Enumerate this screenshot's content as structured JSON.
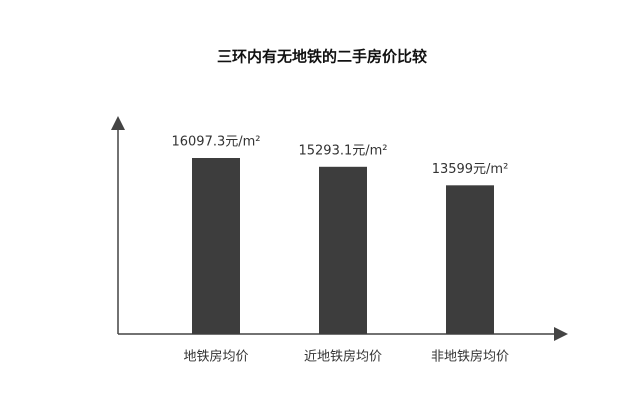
{
  "chart_data": {
    "type": "bar",
    "title": "三环内有无地铁的二手房价比较",
    "categories": [
      "地铁房均价",
      "近地铁房均价",
      "非地铁房均价"
    ],
    "values": [
      16097.3,
      15293.1,
      13599
    ],
    "value_labels": [
      "16097.3元/m²",
      "15293.1元/m²",
      "13599元/m²"
    ],
    "color": "#3d3d3d"
  }
}
